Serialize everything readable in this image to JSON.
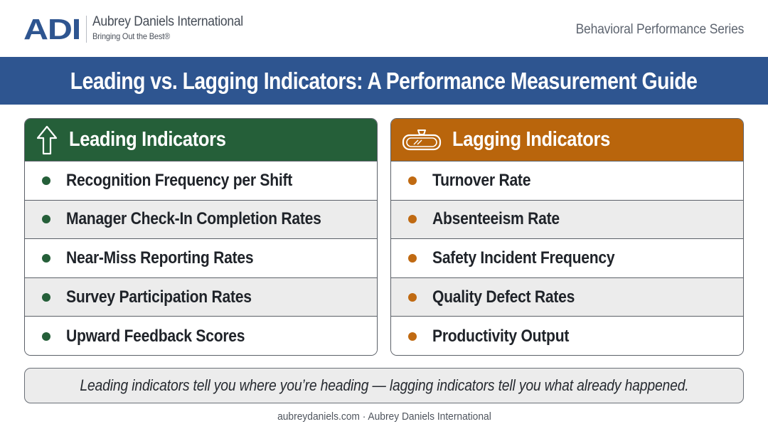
{
  "brand": {
    "logo_text": "ADI",
    "company_name": "Aubrey Daniels International",
    "tagline": "Bringing Out the Best®",
    "logo_color": "#2e5590"
  },
  "series_label": "Behavioral Performance Series",
  "title": "Leading vs. Lagging Indicators: A Performance Measurement Guide",
  "leading": {
    "heading": "Leading Indicators",
    "icon": "up-arrow-icon",
    "color": "#255f39",
    "items": [
      "Recognition Frequency per Shift",
      "Manager Check-In Completion Rates",
      "Near-Miss Reporting Rates",
      "Survey Participation Rates",
      "Upward Feedback Scores"
    ]
  },
  "lagging": {
    "heading": "Lagging Indicators",
    "icon": "rearview-mirror-icon",
    "color": "#b9650c",
    "items": [
      "Turnover Rate",
      "Absenteeism Rate",
      "Safety Incident Frequency",
      "Quality Defect Rates",
      "Productivity Output"
    ]
  },
  "quote": "Leading indicators tell you where you’re heading — lagging indicators tell you what already happened.",
  "footer": "aubreydaniels.com · Aubrey Daniels International"
}
